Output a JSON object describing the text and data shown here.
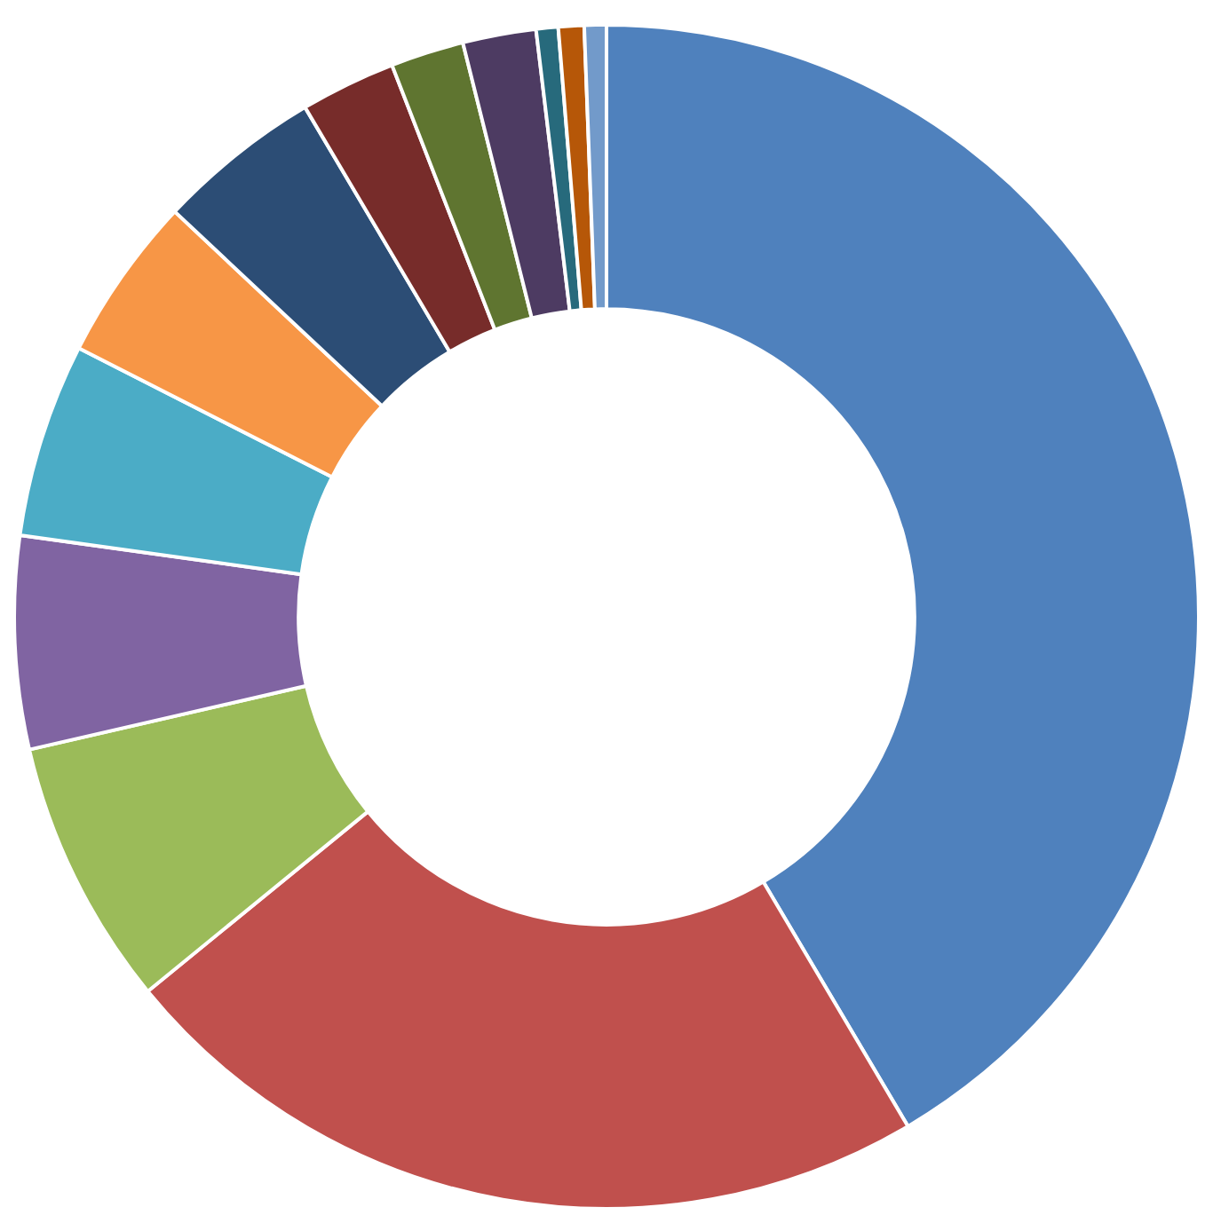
{
  "chart_data": {
    "type": "donut",
    "categories": [
      null,
      null,
      null,
      null,
      null,
      null,
      null,
      null,
      null,
      null,
      null,
      null,
      null
    ],
    "values": [
      41.5,
      22.6,
      7.3,
      5.8,
      5.3,
      4.5,
      4.5,
      2.6,
      2.0,
      2.0,
      0.6,
      0.7,
      0.6
    ],
    "colors": [
      "#4f81bd",
      "#c0504d",
      "#9bbb59",
      "#8064a2",
      "#4bacc6",
      "#f79646",
      "#2c4d75",
      "#772c2a",
      "#5f7530",
      "#4d3b62",
      "#276a7c",
      "#b65708",
      "#729aca"
    ]
  }
}
